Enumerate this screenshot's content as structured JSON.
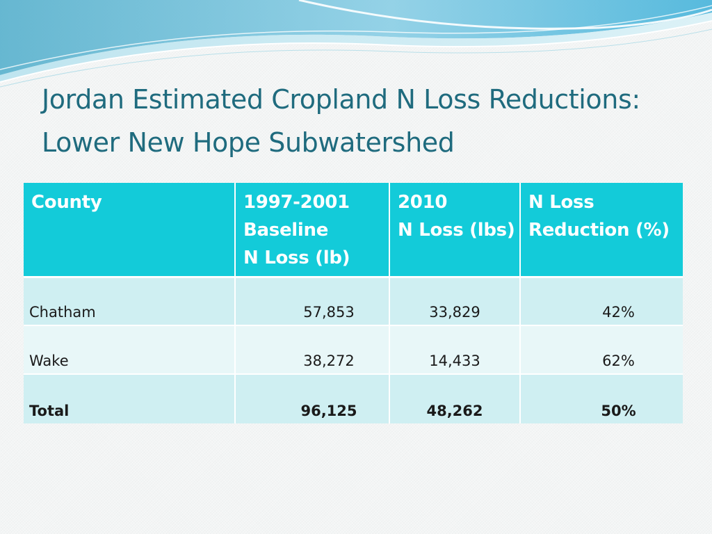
{
  "slide": {
    "title_line1": "Jordan Estimated Cropland N Loss Reductions:",
    "title_line2": "Lower New Hope Subwatershed"
  },
  "table": {
    "headers": [
      [
        "County"
      ],
      [
        "1997-2001",
        "Baseline",
        "N Loss (lb)"
      ],
      [
        "2010",
        "N Loss (lbs)"
      ],
      [
        "N Loss",
        "Reduction (%)"
      ]
    ],
    "rows": [
      [
        "Chatham",
        "57,853",
        "33,829",
        "42%"
      ],
      [
        "Wake",
        "38,272",
        "14,433",
        "62%"
      ],
      [
        "Total",
        "96,125",
        "48,262",
        "50%"
      ]
    ]
  },
  "theme": {
    "header_bg": "#13cbd9",
    "row_dark": "#cfeff2",
    "row_light": "#e8f7f8",
    "title_color": "#1f6b7e"
  }
}
